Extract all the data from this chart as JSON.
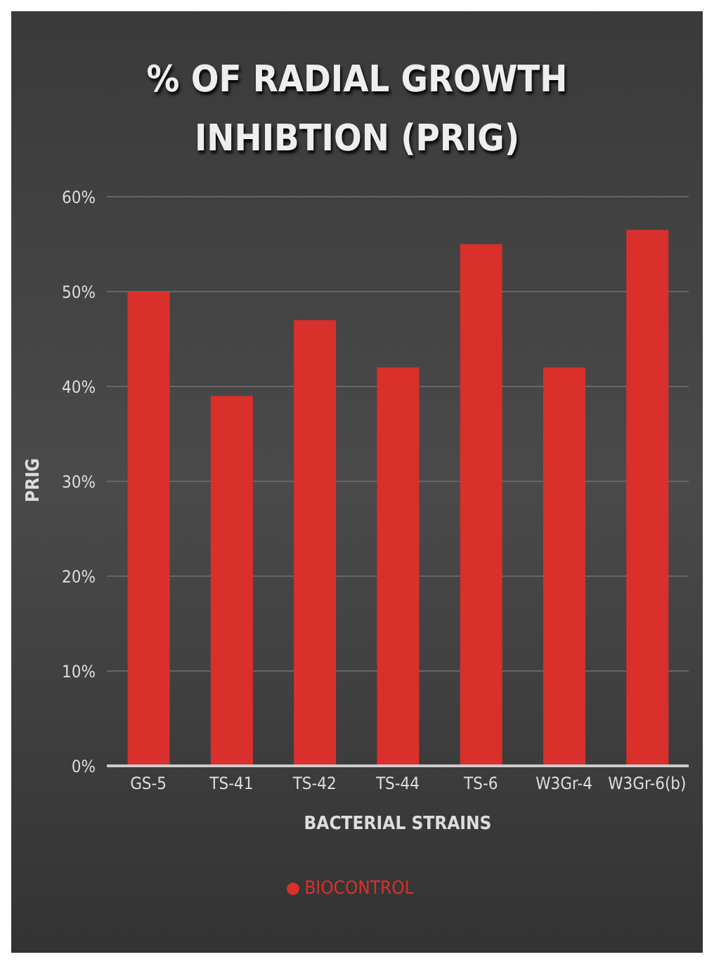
{
  "chart_data": {
    "type": "bar",
    "title": "% OF RADIAL GROWTH INHIBTION (PRIG)",
    "xlabel": "BACTERIAL STRAINS",
    "ylabel": "PRIG",
    "categories": [
      "GS-5",
      "TS-41",
      "TS-42",
      "TS-44",
      "TS-6",
      "W3Gr-4",
      "W3Gr-6(b)"
    ],
    "series": [
      {
        "name": "BIOCONTROL",
        "color": "#d9302c",
        "values": [
          50,
          39,
          47,
          42,
          55,
          42,
          56.5
        ]
      }
    ],
    "ylim": [
      0,
      60
    ],
    "yticks": [
      {
        "value": 0,
        "label": "0%"
      },
      {
        "value": 10,
        "label": "10%"
      },
      {
        "value": 20,
        "label": "20%"
      },
      {
        "value": 30,
        "label": "30%"
      },
      {
        "value": 40,
        "label": "40%"
      },
      {
        "value": 50,
        "label": "50%"
      },
      {
        "value": 60,
        "label": "60%"
      }
    ],
    "grid": "y",
    "legend": "bottom"
  }
}
